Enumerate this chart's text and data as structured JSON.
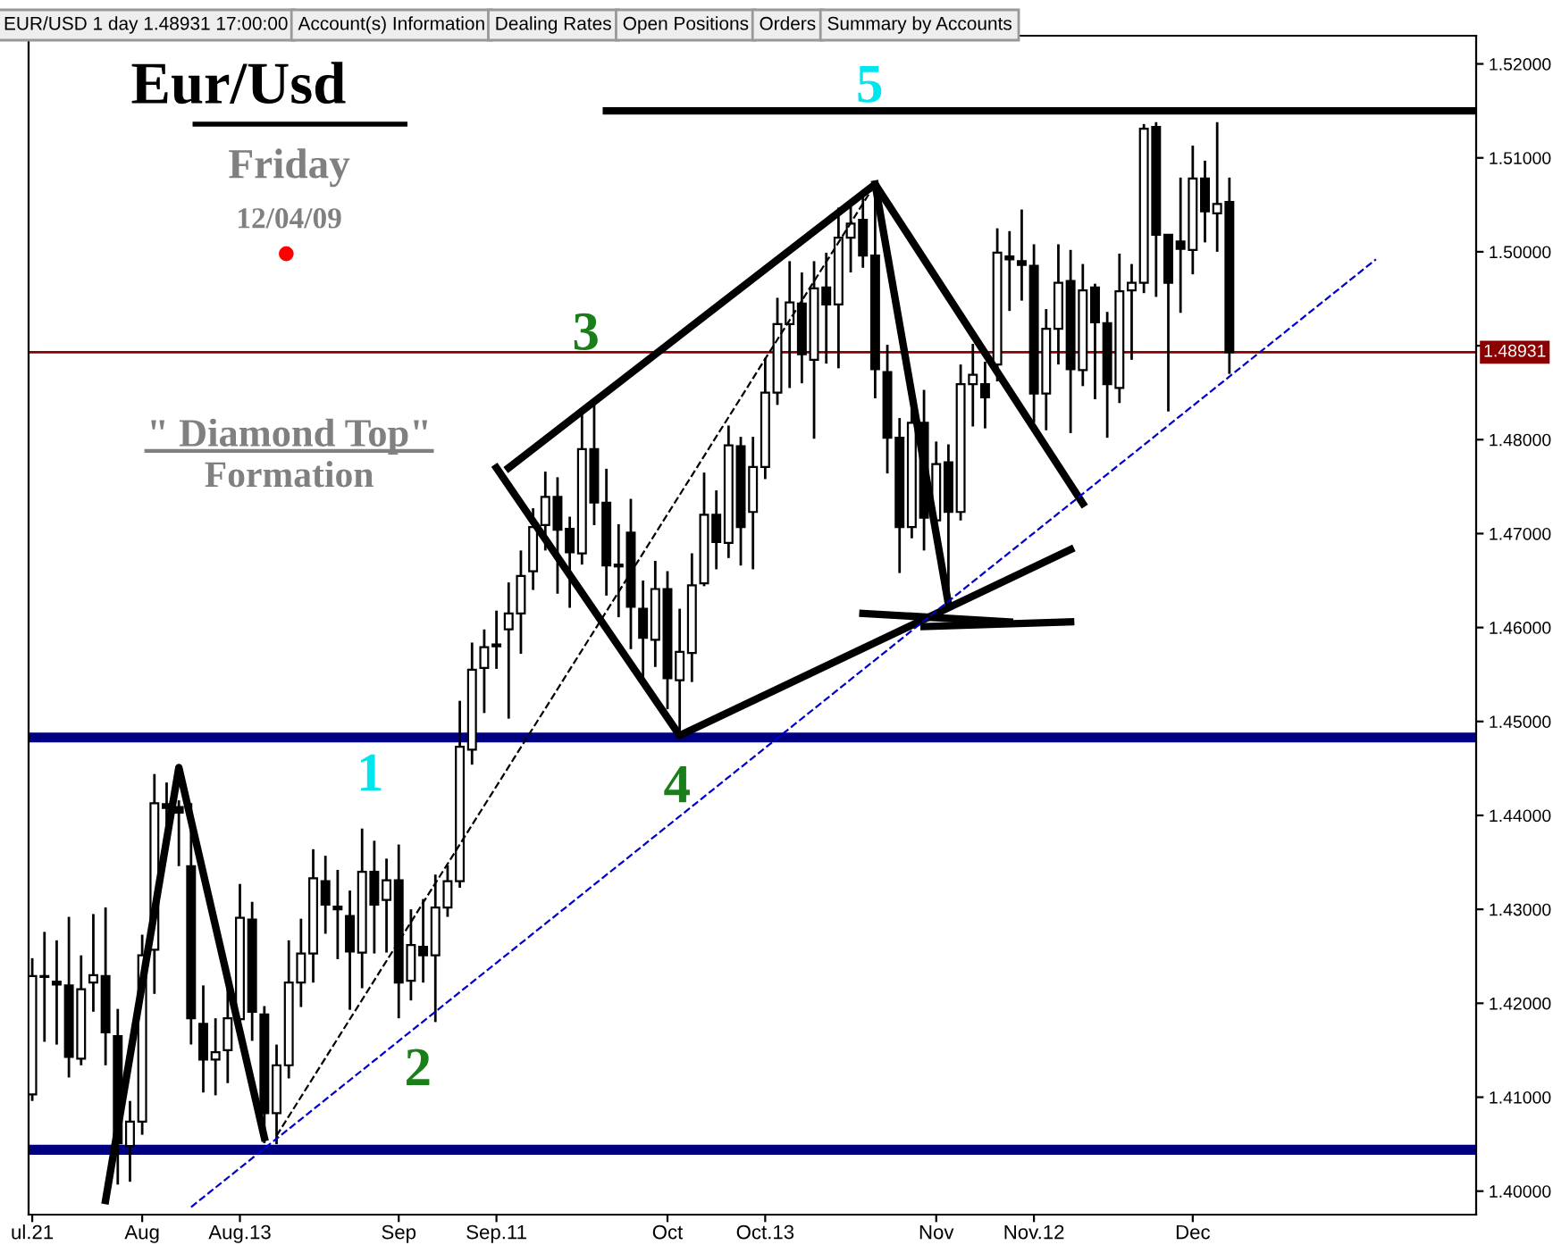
{
  "chart_data": {
    "type": "candlestick",
    "title": "Eur/Usd",
    "subtitle": "Friday",
    "categories": [
      "ul.21",
      null,
      null,
      null,
      null,
      null,
      null,
      null,
      null,
      "Aug",
      null,
      null,
      null,
      null,
      null,
      null,
      null,
      "Aug.13",
      null,
      null,
      null,
      null,
      null,
      null,
      null,
      null,
      null,
      null,
      null,
      null,
      "Sep",
      null,
      null,
      null,
      null,
      null,
      null,
      null,
      "Sep.11",
      null,
      null,
      null,
      null,
      null,
      null,
      null,
      null,
      null,
      null,
      null,
      null,
      null,
      "Oct",
      null,
      null,
      null,
      null,
      null,
      null,
      null,
      "Oct.13",
      null,
      null,
      null,
      null,
      null,
      null,
      null,
      null,
      null,
      null,
      null,
      null,
      null,
      "Nov",
      null,
      null,
      null,
      null,
      null,
      null,
      null,
      "Nov.12",
      null,
      null,
      null,
      null,
      null,
      null,
      null,
      null,
      null,
      null,
      null,
      null,
      "Dec",
      null,
      null,
      null,
      null,
      null,
      null,
      null,
      null,
      null,
      null,
      null,
      null,
      null,
      null,
      null,
      null,
      null,
      null,
      null,
      null,
      null,
      null,
      null
    ],
    "ohlc": [
      [
        1.4103,
        1.4248,
        1.4096,
        1.4229
      ],
      [
        1.4229,
        1.4276,
        1.4159,
        1.4228
      ],
      [
        1.4223,
        1.4267,
        1.4156,
        1.422
      ],
      [
        1.4219,
        1.4292,
        1.4121,
        1.4143
      ],
      [
        1.4141,
        1.4251,
        1.4134,
        1.4215
      ],
      [
        1.4222,
        1.4295,
        1.4191,
        1.423
      ],
      [
        1.4229,
        1.4302,
        1.4134,
        1.4169
      ],
      [
        1.4165,
        1.4194,
        1.4007,
        1.4051
      ],
      [
        1.4048,
        1.4096,
        1.401,
        1.4074
      ],
      [
        1.4074,
        1.4273,
        1.406,
        1.4251
      ],
      [
        1.4257,
        1.4444,
        1.421,
        1.4413
      ],
      [
        1.4412,
        1.4435,
        1.437,
        1.4408
      ],
      [
        1.4409,
        1.4416,
        1.4346,
        1.4403
      ],
      [
        1.4346,
        1.4413,
        1.4156,
        1.4184
      ],
      [
        1.4178,
        1.4219,
        1.4105,
        1.414
      ],
      [
        1.414,
        1.4184,
        1.4102,
        1.4148
      ],
      [
        1.415,
        1.4219,
        1.4115,
        1.4184
      ],
      [
        1.4183,
        1.4327,
        1.416,
        1.4291
      ],
      [
        1.4289,
        1.4308,
        1.416,
        1.4191
      ],
      [
        1.4188,
        1.4197,
        1.4051,
        1.4083
      ],
      [
        1.4083,
        1.4156,
        1.405,
        1.4134
      ],
      [
        1.4134,
        1.4267,
        1.412,
        1.4222
      ],
      [
        1.4222,
        1.429,
        1.4196,
        1.4253
      ],
      [
        1.4253,
        1.4364,
        1.4222,
        1.4333
      ],
      [
        1.433,
        1.4357,
        1.4274,
        1.4305
      ],
      [
        1.4303,
        1.4342,
        1.4247,
        1.43
      ],
      [
        1.4293,
        1.432,
        1.4193,
        1.4255
      ],
      [
        1.4254,
        1.4386,
        1.4216,
        1.434
      ],
      [
        1.434,
        1.4373,
        1.4253,
        1.4305
      ],
      [
        1.431,
        1.4354,
        1.4254,
        1.4331
      ],
      [
        1.4331,
        1.4369,
        1.4184,
        1.4222
      ],
      [
        1.4224,
        1.43,
        1.4203,
        1.4262
      ],
      [
        1.426,
        1.4311,
        1.4222,
        1.4251
      ],
      [
        1.4251,
        1.4337,
        1.418,
        1.4302
      ],
      [
        1.4302,
        1.4347,
        1.4292,
        1.433
      ],
      [
        1.433,
        1.4522,
        1.4323,
        1.4473
      ],
      [
        1.447,
        1.4584,
        1.4454,
        1.4555
      ],
      [
        1.4557,
        1.4598,
        1.4509,
        1.4579
      ],
      [
        1.4582,
        1.4618,
        1.4556,
        1.458
      ],
      [
        1.4598,
        1.4648,
        1.4503,
        1.4615
      ],
      [
        1.4615,
        1.4682,
        1.4572,
        1.4655
      ],
      [
        1.466,
        1.4727,
        1.464,
        1.4707
      ],
      [
        1.4709,
        1.4766,
        1.4682,
        1.4739
      ],
      [
        1.4739,
        1.476,
        1.4636,
        1.4704
      ],
      [
        1.4705,
        1.4718,
        1.4621,
        1.468
      ],
      [
        1.4679,
        1.4831,
        1.4667,
        1.479
      ],
      [
        1.479,
        1.4839,
        1.4709,
        1.4733
      ],
      [
        1.4733,
        1.4769,
        1.4634,
        1.4666
      ],
      [
        1.4667,
        1.471,
        1.4611,
        1.4665
      ],
      [
        1.4701,
        1.4737,
        1.4577,
        1.4622
      ],
      [
        1.462,
        1.465,
        1.4545,
        1.4589
      ],
      [
        1.4587,
        1.4671,
        1.4558,
        1.4641
      ],
      [
        1.4641,
        1.466,
        1.4513,
        1.4546
      ],
      [
        1.4544,
        1.462,
        1.4482,
        1.4574
      ],
      [
        1.4573,
        1.4679,
        1.4542,
        1.4645
      ],
      [
        1.4647,
        1.4765,
        1.4644,
        1.472
      ],
      [
        1.472,
        1.4746,
        1.4662,
        1.4691
      ],
      [
        1.469,
        1.4815,
        1.4674,
        1.4794
      ],
      [
        1.4793,
        1.4803,
        1.4666,
        1.4707
      ],
      [
        1.4723,
        1.4803,
        1.4662,
        1.4771
      ],
      [
        1.4771,
        1.4887,
        1.4758,
        1.485
      ],
      [
        1.485,
        1.4951,
        1.4837,
        1.4923
      ],
      [
        1.4923,
        1.499,
        1.4855,
        1.4946
      ],
      [
        1.4945,
        1.4978,
        1.486,
        1.4891
      ],
      [
        1.4885,
        1.499,
        1.4801,
        1.4961
      ],
      [
        1.4962,
        1.4999,
        1.4881,
        1.4944
      ],
      [
        1.4944,
        1.5047,
        1.4876,
        1.5015
      ],
      [
        1.5015,
        1.5053,
        1.4978,
        1.503
      ],
      [
        1.5034,
        1.5063,
        1.4983,
        1.4996
      ],
      [
        1.4996,
        1.506,
        1.4844,
        1.4875
      ],
      [
        1.4872,
        1.4901,
        1.4764,
        1.4802
      ],
      [
        1.4802,
        1.4823,
        1.4658,
        1.4707
      ],
      [
        1.4707,
        1.4853,
        1.4695,
        1.4818
      ],
      [
        1.4818,
        1.4853,
        1.4682,
        1.4717
      ],
      [
        1.4714,
        1.4798,
        1.4692,
        1.4774
      ],
      [
        1.4776,
        1.4795,
        1.4622,
        1.4723
      ],
      [
        1.4723,
        1.488,
        1.4714,
        1.4859
      ],
      [
        1.4859,
        1.4902,
        1.4814,
        1.4869
      ],
      [
        1.4859,
        1.4883,
        1.4812,
        1.4845
      ],
      [
        1.488,
        1.5025,
        1.4862,
        1.4999
      ],
      [
        1.4995,
        1.5022,
        1.4937,
        1.4992
      ],
      [
        1.499,
        1.5045,
        1.4948,
        1.4986
      ],
      [
        1.4985,
        1.5008,
        1.4818,
        1.4849
      ],
      [
        1.4849,
        1.4939,
        1.481,
        1.4918
      ],
      [
        1.4918,
        1.5008,
        1.488,
        1.4967
      ],
      [
        1.4969,
        1.5002,
        1.4807,
        1.4875
      ],
      [
        1.4874,
        1.4987,
        1.4857,
        1.4959
      ],
      [
        1.4962,
        1.4966,
        1.4843,
        1.4925
      ],
      [
        1.4924,
        1.4936,
        1.4802,
        1.4859
      ],
      [
        1.4855,
        1.4998,
        1.4839,
        1.4958
      ],
      [
        1.4959,
        1.4987,
        1.4885,
        1.4967
      ],
      [
        1.4967,
        1.5136,
        1.4956,
        1.5131
      ],
      [
        1.5133,
        1.5138,
        1.4952,
        1.5018
      ],
      [
        1.5018,
        1.5018,
        1.483,
        1.4967
      ],
      [
        1.5011,
        1.5079,
        1.4935,
        1.5003
      ],
      [
        1.5002,
        1.5113,
        1.4976,
        1.5078
      ],
      [
        1.5078,
        1.5097,
        1.501,
        1.5043
      ],
      [
        1.5041,
        1.5138,
        1.5,
        1.5051
      ],
      [
        1.5053,
        1.5079,
        1.487,
        1.48931
      ],
      null,
      null,
      null,
      null,
      null,
      null,
      null,
      null,
      null,
      null,
      null,
      null,
      null,
      null,
      null,
      null,
      null,
      null,
      null,
      null
    ],
    "ylim": [
      1.3975,
      1.523
    ],
    "yticks": [
      {
        "value": 1.4,
        "label": "1.40000"
      },
      {
        "value": 1.41,
        "label": "1.41000"
      },
      {
        "value": 1.42,
        "label": "1.42000"
      },
      {
        "value": 1.43,
        "label": "1.43000"
      },
      {
        "value": 1.44,
        "label": "1.44000"
      },
      {
        "value": 1.45,
        "label": "1.45000"
      },
      {
        "value": 1.46,
        "label": "1.46000"
      },
      {
        "value": 1.47,
        "label": "1.47000"
      },
      {
        "value": 1.48,
        "label": "1.48000"
      },
      {
        "value": 1.49,
        "label": null
      },
      {
        "value": 1.5,
        "label": "1.50000"
      },
      {
        "value": 1.51,
        "label": "1.51000"
      },
      {
        "value": 1.52,
        "label": "1.52000"
      }
    ],
    "ref_lines": [
      {
        "axis": "y",
        "value": 1.48931,
        "label": "1.48931",
        "color": "#8b0000"
      },
      {
        "axis": "y",
        "value": 1.4483,
        "color": "#000080"
      },
      {
        "axis": "y",
        "value": 1.4044,
        "color": "#000080"
      }
    ],
    "series": [
      {
        "type": "line",
        "color": "#000000",
        "line_style": "solid",
        "values": [
          null,
          null,
          null,
          null,
          null,
          null,
          null,
          null,
          null,
          null,
          null,
          null,
          null,
          null,
          null,
          null,
          null,
          null,
          null,
          null,
          null,
          null,
          null,
          null,
          null,
          null,
          null,
          null,
          null,
          null,
          null,
          null,
          null,
          null,
          null,
          null,
          null,
          null,
          null,
          null,
          null,
          null,
          null,
          null,
          null,
          null,
          null,
          1.515,
          null,
          null,
          null,
          null,
          null,
          null,
          null,
          null,
          null,
          null,
          null,
          null,
          null,
          null,
          null,
          null,
          null,
          null,
          null,
          null,
          null,
          null,
          null,
          null,
          null,
          null,
          null,
          null,
          null,
          null,
          null,
          null,
          null,
          null,
          null,
          null,
          null,
          null,
          null,
          null,
          null,
          null,
          null,
          null,
          null,
          null,
          null,
          null,
          null,
          null,
          null,
          null,
          null,
          null,
          null,
          null,
          null,
          null,
          null,
          null,
          null,
          null,
          null,
          null,
          null,
          null,
          null,
          null,
          null,
          null,
          1.515
        ]
      },
      {
        "type": "line",
        "color": "#000000",
        "line_style": "solid",
        "values": [
          null,
          null,
          null,
          null,
          null,
          null,
          1.399,
          null,
          null,
          null,
          null,
          null,
          1.4451,
          null,
          null,
          null,
          null,
          null,
          null,
          1.4057,
          null,
          null,
          null,
          null,
          null,
          null,
          null,
          null,
          null,
          null,
          null,
          null,
          null,
          null,
          null,
          null,
          null,
          null,
          null,
          null,
          null,
          null,
          null,
          null,
          null,
          null,
          null,
          null,
          null,
          null,
          null,
          null,
          null,
          null,
          null,
          null,
          null,
          null,
          null,
          null,
          null,
          null,
          null,
          null,
          null,
          null,
          null,
          null,
          null,
          null,
          null,
          null,
          null,
          null,
          null,
          null,
          null,
          null,
          null,
          null,
          null,
          null,
          null,
          null,
          null,
          null,
          null,
          null,
          null,
          null,
          null,
          null,
          null,
          null,
          null,
          null,
          null,
          null,
          null,
          null,
          null,
          null,
          null,
          null,
          null,
          null,
          null,
          null,
          null,
          null,
          null,
          null,
          null,
          null,
          null,
          null,
          null,
          null,
          null
        ]
      },
      {
        "type": "line",
        "color": "#000000",
        "line_style": "solid",
        "values": [
          null,
          null,
          null,
          null,
          null,
          null,
          null,
          null,
          null,
          null,
          null,
          null,
          null,
          null,
          null,
          null,
          null,
          null,
          null,
          null,
          null,
          null,
          null,
          null,
          null,
          null,
          null,
          null,
          null,
          null,
          null,
          null,
          null,
          null,
          null,
          null,
          null,
          null,
          1.477,
          null,
          null,
          null,
          null,
          null,
          null,
          null,
          null,
          null,
          null,
          null,
          null,
          null,
          null,
          1.4485,
          null,
          null,
          null,
          null,
          null,
          null,
          null,
          null,
          null,
          null,
          null,
          null,
          null,
          null,
          null,
          null,
          null,
          null,
          null,
          null,
          null,
          null,
          null,
          null,
          null,
          null,
          null,
          null,
          null,
          null,
          null,
          1.4683,
          null,
          null,
          null,
          null,
          null,
          null,
          null,
          null,
          null,
          null,
          null,
          null,
          null,
          null,
          null,
          null,
          null,
          null,
          null,
          null,
          null,
          null,
          null,
          null,
          null,
          null,
          null,
          null,
          null,
          null,
          null,
          null,
          null
        ]
      },
      {
        "type": "line",
        "color": "#000000",
        "line_style": "solid",
        "values": [
          null,
          null,
          null,
          null,
          null,
          null,
          null,
          null,
          null,
          null,
          null,
          null,
          null,
          null,
          null,
          null,
          null,
          null,
          null,
          null,
          null,
          null,
          null,
          null,
          null,
          null,
          null,
          null,
          null,
          null,
          null,
          null,
          null,
          null,
          null,
          null,
          null,
          null,
          null,
          1.477,
          null,
          null,
          null,
          null,
          null,
          null,
          null,
          null,
          null,
          null,
          null,
          null,
          null,
          null,
          null,
          null,
          null,
          null,
          null,
          null,
          null,
          null,
          null,
          null,
          null,
          null,
          null,
          null,
          null,
          1.5072,
          null,
          null,
          null,
          null,
          null,
          null,
          null,
          null,
          null,
          null,
          null,
          null,
          null,
          null,
          null,
          null,
          1.4732,
          null,
          null,
          null,
          null,
          null,
          null,
          null,
          null,
          null,
          null,
          null,
          null,
          null,
          null,
          null,
          null,
          null,
          null,
          null,
          null,
          null,
          null,
          null,
          null,
          null,
          null,
          null,
          null,
          null,
          null,
          null,
          null
        ]
      },
      {
        "type": "line",
        "color": "#000000",
        "line_style": "solid",
        "values": [
          null,
          null,
          null,
          null,
          null,
          null,
          null,
          null,
          null,
          null,
          null,
          null,
          null,
          null,
          null,
          null,
          null,
          null,
          null,
          null,
          null,
          null,
          null,
          null,
          null,
          null,
          null,
          null,
          null,
          null,
          null,
          null,
          null,
          null,
          null,
          null,
          null,
          null,
          null,
          null,
          null,
          null,
          null,
          null,
          null,
          null,
          null,
          null,
          null,
          null,
          null,
          null,
          null,
          null,
          null,
          null,
          null,
          null,
          null,
          null,
          null,
          null,
          null,
          null,
          null,
          null,
          null,
          null,
          null,
          1.5072,
          null,
          null,
          null,
          null,
          null,
          1.4625,
          null,
          null,
          null,
          null,
          null,
          null,
          null,
          null,
          null,
          null,
          null,
          null,
          null,
          null,
          null,
          null,
          null,
          null,
          null,
          null,
          null,
          null,
          null,
          null,
          null,
          null,
          null,
          null,
          null,
          null,
          null,
          null,
          null,
          null,
          null,
          null,
          null,
          null,
          null,
          null,
          null,
          null,
          null
        ]
      },
      {
        "type": "line",
        "color": "#000000",
        "line_style": "solid",
        "values": [
          null,
          null,
          null,
          null,
          null,
          null,
          null,
          null,
          null,
          null,
          null,
          null,
          null,
          null,
          null,
          null,
          null,
          null,
          null,
          null,
          null,
          null,
          null,
          null,
          null,
          null,
          null,
          null,
          null,
          null,
          null,
          null,
          null,
          null,
          null,
          null,
          null,
          null,
          null,
          null,
          null,
          null,
          null,
          null,
          null,
          null,
          null,
          null,
          null,
          null,
          null,
          null,
          null,
          null,
          null,
          null,
          null,
          null,
          null,
          null,
          null,
          null,
          null,
          null,
          null,
          null,
          null,
          null,
          1.4615,
          null,
          null,
          null,
          null,
          null,
          null,
          null,
          null,
          null,
          null,
          null,
          1.4606,
          null,
          null,
          null,
          null,
          null,
          null,
          null,
          null,
          null,
          null,
          null,
          null,
          null,
          null,
          null,
          null,
          null,
          null,
          null,
          null,
          null,
          null,
          null,
          null,
          null,
          null,
          null,
          null,
          null,
          null,
          null,
          null,
          null,
          null,
          null,
          null,
          null,
          null
        ]
      },
      {
        "type": "line",
        "color": "#000000",
        "line_style": "solid",
        "values": [
          null,
          null,
          null,
          null,
          null,
          null,
          null,
          null,
          null,
          null,
          null,
          null,
          null,
          null,
          null,
          null,
          null,
          null,
          null,
          null,
          null,
          null,
          null,
          null,
          null,
          null,
          null,
          null,
          null,
          null,
          null,
          null,
          null,
          null,
          null,
          null,
          null,
          null,
          null,
          null,
          null,
          null,
          null,
          null,
          null,
          null,
          null,
          null,
          null,
          null,
          null,
          null,
          null,
          null,
          null,
          null,
          null,
          null,
          null,
          null,
          null,
          null,
          null,
          null,
          null,
          null,
          null,
          null,
          null,
          null,
          null,
          null,
          null,
          1.4601,
          null,
          null,
          null,
          null,
          null,
          null,
          null,
          null,
          null,
          null,
          null,
          1.4606,
          null,
          null,
          null,
          null,
          null,
          null,
          null,
          null,
          null,
          null,
          null,
          null,
          null,
          null,
          null,
          null,
          null,
          null,
          null,
          null,
          null,
          null,
          null,
          null,
          null,
          null,
          null,
          null,
          null,
          null,
          null,
          null,
          null
        ]
      },
      {
        "type": "line",
        "color": "#000000",
        "line_style": "dashed",
        "values": [
          null,
          null,
          null,
          null,
          null,
          null,
          null,
          null,
          null,
          null,
          null,
          null,
          null,
          null,
          null,
          null,
          null,
          null,
          null,
          null,
          1.4059,
          null,
          null,
          null,
          null,
          null,
          null,
          null,
          null,
          null,
          null,
          null,
          null,
          null,
          null,
          null,
          null,
          null,
          null,
          null,
          null,
          null,
          null,
          null,
          null,
          null,
          null,
          null,
          null,
          null,
          null,
          null,
          null,
          null,
          null,
          null,
          null,
          null,
          null,
          null,
          null,
          null,
          null,
          null,
          null,
          null,
          null,
          null,
          null,
          1.5072,
          null,
          null,
          null,
          null,
          null,
          null,
          null,
          null,
          null,
          null,
          null,
          null,
          null,
          null,
          null,
          null,
          null,
          null,
          null,
          null,
          null,
          null,
          null,
          null,
          null,
          null,
          null,
          null,
          null,
          null,
          null,
          null,
          null,
          null,
          null,
          null,
          null,
          null,
          null,
          null,
          null,
          null,
          null,
          null,
          null,
          null,
          null,
          null,
          null
        ]
      },
      {
        "type": "line",
        "color": "#0000cd",
        "line_style": "dashed",
        "values": [
          null,
          null,
          null,
          null,
          null,
          null,
          null,
          null,
          null,
          null,
          null,
          null,
          null,
          1.3983,
          null,
          null,
          null,
          null,
          null,
          null,
          null,
          null,
          null,
          null,
          null,
          null,
          null,
          null,
          null,
          null,
          null,
          null,
          null,
          null,
          null,
          null,
          null,
          null,
          null,
          null,
          null,
          null,
          null,
          null,
          null,
          null,
          null,
          null,
          null,
          null,
          null,
          null,
          null,
          null,
          null,
          null,
          null,
          null,
          null,
          null,
          null,
          null,
          null,
          null,
          null,
          null,
          null,
          null,
          null,
          null,
          null,
          null,
          null,
          null,
          null,
          null,
          null,
          null,
          null,
          null,
          null,
          null,
          null,
          null,
          null,
          null,
          null,
          null,
          null,
          null,
          null,
          null,
          null,
          null,
          null,
          null,
          null,
          null,
          null,
          null,
          null,
          null,
          null,
          null,
          null,
          null,
          null,
          null,
          null,
          null,
          1.4992,
          null,
          null,
          null,
          null,
          null,
          null,
          null,
          null
        ]
      }
    ],
    "annotations": [
      "EUR/USD 1 day 1.48931 17:00:00",
      "Account(s) Information",
      "Dealing Rates",
      "Open Positions",
      "Orders",
      "Summary by Accounts",
      "12/04/09",
      "\" Diamond Top\"",
      "Formation",
      "1",
      "2",
      "3",
      "4",
      "5"
    ]
  }
}
